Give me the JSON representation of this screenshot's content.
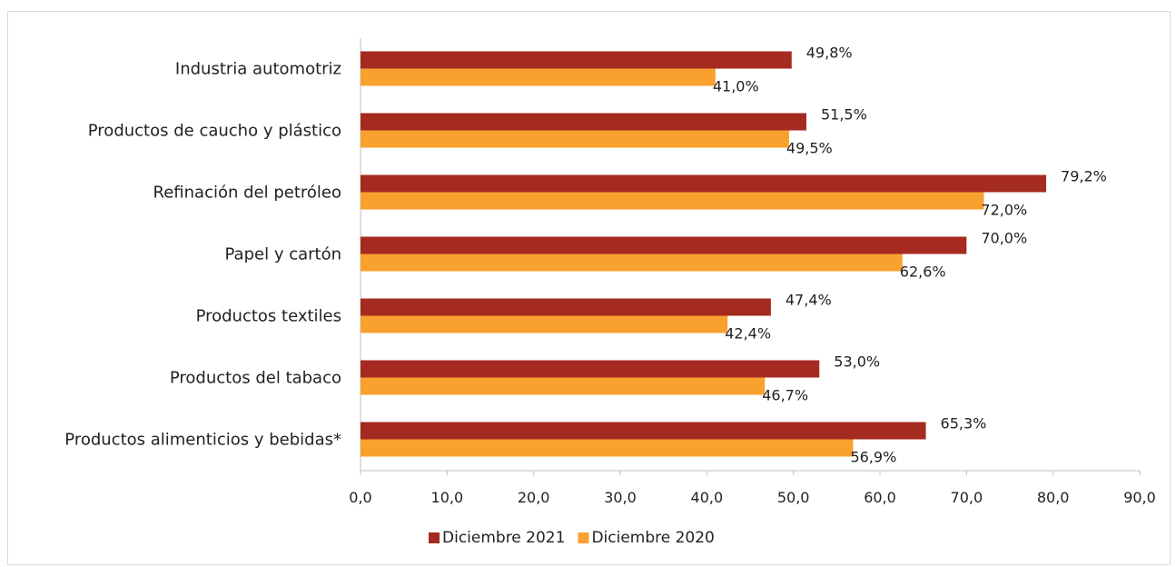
{
  "chart_data": {
    "type": "bar",
    "orientation": "horizontal",
    "categories": [
      "Industria automotriz",
      "Productos de caucho y plástico",
      "Refinación del petróleo",
      "Papel y cartón",
      "Productos textiles",
      "Productos del tabaco",
      "Productos alimenticios y bebidas*"
    ],
    "series": [
      {
        "name": "Diciembre 2021",
        "color": "#A52A1F",
        "values": [
          49.8,
          51.5,
          79.2,
          70.0,
          47.4,
          53.0,
          65.3
        ],
        "labels": [
          "49,8%",
          "51,5%",
          "79,2%",
          "70,0%",
          "47,4%",
          "53,0%",
          "65,3%"
        ]
      },
      {
        "name": "Diciembre 2020",
        "color": "#F9A12E",
        "values": [
          41.0,
          49.5,
          72.0,
          62.6,
          42.4,
          46.7,
          56.9
        ],
        "labels": [
          "41,0%",
          "49,5%",
          "72,0%",
          "62,6%",
          "42,4%",
          "46,7%",
          "56,9%"
        ]
      }
    ],
    "xlim": [
      0,
      90
    ],
    "x_ticks": [
      0,
      10,
      20,
      30,
      40,
      50,
      60,
      70,
      80,
      90
    ],
    "x_tick_labels": [
      "0,0",
      "10,0",
      "20,0",
      "30,0",
      "40,0",
      "50,0",
      "60,0",
      "70,0",
      "80,0",
      "90,0"
    ],
    "title": "",
    "xlabel": "",
    "ylabel": "",
    "grid": false,
    "legend": "bottom"
  }
}
